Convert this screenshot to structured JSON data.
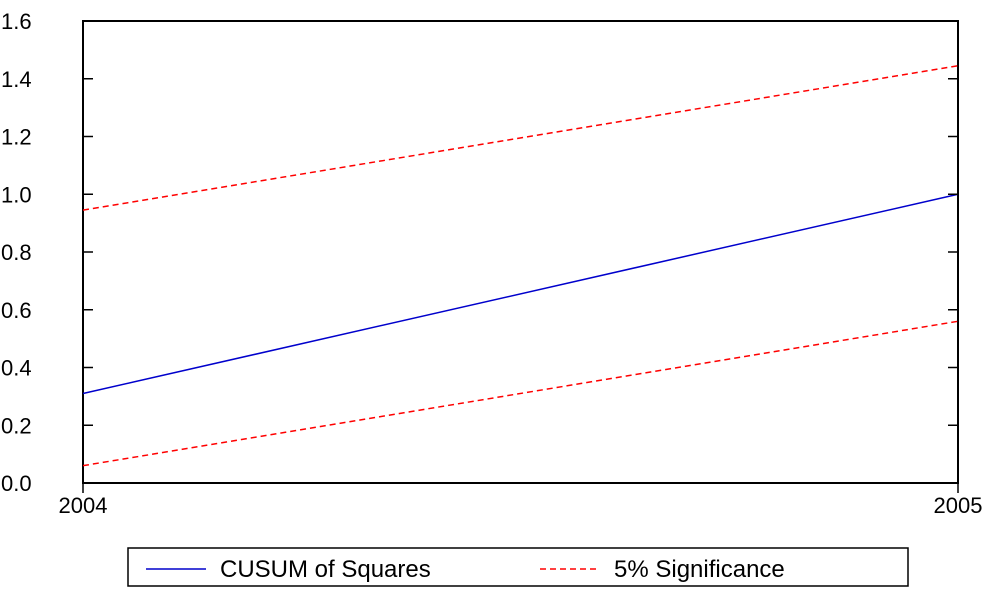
{
  "chart_data": {
    "type": "line",
    "x": [
      2004,
      2005
    ],
    "x_tick_labels": [
      "2004",
      "2005"
    ],
    "xlim": [
      2004,
      2005
    ],
    "ylim": [
      0.0,
      1.6
    ],
    "y_ticks": [
      0.0,
      0.2,
      0.4,
      0.6,
      0.8,
      1.0,
      1.2,
      1.4,
      1.6
    ],
    "y_tick_labels": [
      "0.0",
      "0.2",
      "0.4",
      "0.6",
      "0.8",
      "1.0",
      "1.2",
      "1.4",
      "1.6"
    ],
    "grid": false,
    "legend_position": "bottom",
    "series": [
      {
        "name": "CUSUM of Squares",
        "values": [
          0.31,
          1.0
        ],
        "color": "#0000cc",
        "style": "solid"
      },
      {
        "name": "5% Significance",
        "values": [
          0.945,
          1.445
        ],
        "color": "#ff0000",
        "style": "dashed",
        "legend": true
      },
      {
        "name": "5% Significance",
        "values": [
          0.06,
          0.56
        ],
        "color": "#ff0000",
        "style": "dashed",
        "legend": false
      }
    ]
  }
}
